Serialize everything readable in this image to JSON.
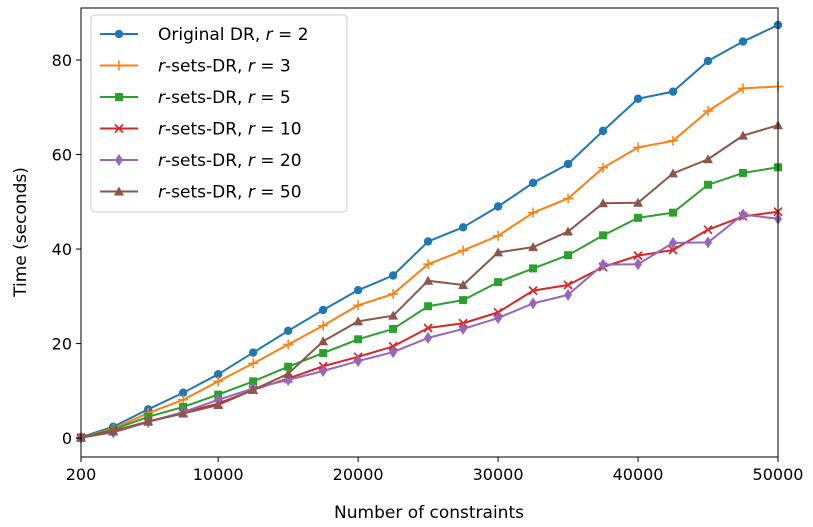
{
  "chart_data": {
    "type": "line",
    "xlabel": "Number of constraints",
    "ylabel": "Time (seconds)",
    "xlim": [
      200,
      50000
    ],
    "ylim": [
      -4,
      91
    ],
    "x_ticks": [
      200,
      10000,
      20000,
      30000,
      40000,
      50000
    ],
    "x_tick_labels": [
      "200",
      "10000",
      "20000",
      "30000",
      "40000",
      "50000"
    ],
    "y_ticks": [
      0,
      20,
      40,
      60,
      80
    ],
    "y_tick_labels": [
      "0",
      "20",
      "40",
      "60",
      "80"
    ],
    "grid": false,
    "legend_position": "top-left",
    "x": [
      200,
      2500,
      5000,
      7500,
      10000,
      12500,
      15000,
      17500,
      20000,
      22500,
      25000,
      27500,
      30000,
      32500,
      35000,
      37500,
      40000,
      42500,
      45000,
      47500,
      50000
    ],
    "series": [
      {
        "legend_prefix": "Original DR, ",
        "legend_param": "r",
        "legend_value": " = 2",
        "color": "#1f77b4",
        "marker": "circle",
        "values": [
          0.2,
          2.4,
          6.1,
          9.6,
          13.5,
          18.1,
          22.7,
          27.1,
          31.3,
          34.4,
          41.6,
          44.6,
          49.0,
          54.0,
          58.0,
          65.0,
          71.8,
          73.3,
          79.8,
          83.9,
          87.4
        ]
      },
      {
        "legend_prefix": "",
        "legend_param": "r",
        "legend_value": "-sets-DR, r = 3",
        "color": "#ff7f0e",
        "marker": "plus",
        "values": [
          0.1,
          2.0,
          5.3,
          8.1,
          12.0,
          15.8,
          19.8,
          23.8,
          28.1,
          30.5,
          36.8,
          39.7,
          42.8,
          47.7,
          50.7,
          57.2,
          61.5,
          62.9,
          69.2,
          74.0,
          74.4
        ]
      },
      {
        "legend_prefix": "",
        "legend_param": "r",
        "legend_value": "-sets-DR, r = 5",
        "color": "#2ca02c",
        "marker": "square",
        "values": [
          0.1,
          1.8,
          4.5,
          6.6,
          9.2,
          12.0,
          15.1,
          18.0,
          20.9,
          23.1,
          27.9,
          29.2,
          33.0,
          35.9,
          38.7,
          42.9,
          46.6,
          47.7,
          53.6,
          56.1,
          57.3
        ]
      },
      {
        "legend_prefix": "",
        "legend_param": "r",
        "legend_value": "-sets-DR, r = 10",
        "color": "#d62728",
        "marker": "x",
        "values": [
          0.1,
          1.5,
          3.5,
          5.4,
          7.3,
          10.2,
          12.6,
          15.2,
          17.2,
          19.4,
          23.3,
          24.3,
          26.6,
          31.2,
          32.4,
          36.2,
          38.6,
          39.8,
          44.1,
          46.9,
          47.9
        ]
      },
      {
        "legend_prefix": "",
        "legend_param": "r",
        "legend_value": "-sets-DR, r = 20",
        "color": "#9467bd",
        "marker": "diamond",
        "values": [
          0.1,
          1.2,
          3.4,
          5.5,
          8.1,
          10.5,
          12.3,
          14.2,
          16.3,
          18.2,
          21.2,
          23.1,
          25.4,
          28.5,
          30.3,
          36.7,
          36.8,
          41.3,
          41.4,
          47.3,
          46.4
        ]
      },
      {
        "legend_prefix": "",
        "legend_param": "r",
        "legend_value": "-sets-DR, r = 50",
        "color": "#8c564b",
        "marker": "triangle",
        "values": [
          0.1,
          1.4,
          3.5,
          5.2,
          7.0,
          10.2,
          13.6,
          20.5,
          24.7,
          25.9,
          33.3,
          32.4,
          39.3,
          40.4,
          43.7,
          49.7,
          49.8,
          56.0,
          59.0,
          64.0,
          66.2
        ]
      }
    ]
  }
}
